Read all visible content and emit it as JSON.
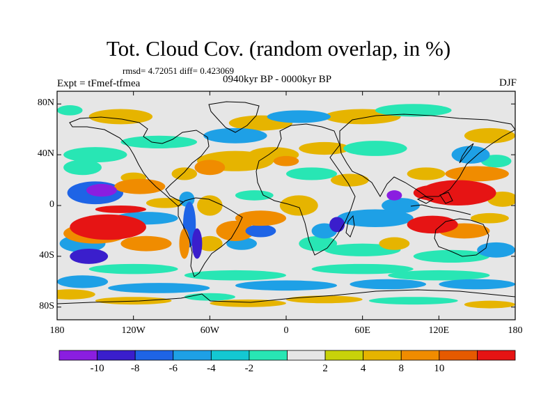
{
  "title": "Tot. Cloud Cov. (random overlap, in %)",
  "stats_line": "rmsd= 4.72051 diff= 0.423069",
  "experiment_label": "Expt = tFmef-tfmea",
  "period_label": "0940kyr BP - 0000kyr BP",
  "season_label": "DJF",
  "lat_ticks": [
    {
      "value": 80,
      "label": "80N"
    },
    {
      "value": 40,
      "label": "40N"
    },
    {
      "value": 0,
      "label": "0"
    },
    {
      "value": -40,
      "label": "40S"
    },
    {
      "value": -80,
      "label": "80S"
    }
  ],
  "lon_ticks": [
    {
      "value": -180,
      "label": "180"
    },
    {
      "value": -120,
      "label": "120W"
    },
    {
      "value": -60,
      "label": "60W"
    },
    {
      "value": 0,
      "label": "0"
    },
    {
      "value": 60,
      "label": "60E"
    },
    {
      "value": 120,
      "label": "120E"
    },
    {
      "value": 180,
      "label": "180"
    }
  ],
  "colorbar": {
    "colors": [
      "#8a1ee0",
      "#3a1ecc",
      "#1e64e6",
      "#1ea0e6",
      "#14c8d2",
      "#28e6b4",
      "#e6e6e6",
      "#c8d20a",
      "#e6b400",
      "#f08c00",
      "#e65a00",
      "#e61414"
    ],
    "boundaries": [
      -12,
      -10,
      -8,
      -6,
      -4,
      -2,
      2,
      4,
      8,
      10
    ],
    "labels": [
      "-10",
      "-8",
      "-6",
      "-4",
      "-2",
      "2",
      "4",
      "8",
      "10"
    ]
  },
  "field_blobs": [
    {
      "lon": -150,
      "lat": 10,
      "rx": 22,
      "ry": 9,
      "v": -7
    },
    {
      "lon": -145,
      "lat": 12,
      "rx": 12,
      "ry": 5,
      "v": -11
    },
    {
      "lon": -115,
      "lat": 15,
      "rx": 20,
      "ry": 6,
      "v": 8
    },
    {
      "lon": -120,
      "lat": 22,
      "rx": 10,
      "ry": 4,
      "v": 4
    },
    {
      "lon": -160,
      "lat": 30,
      "rx": 15,
      "ry": 6,
      "v": -4
    },
    {
      "lon": -140,
      "lat": -17,
      "rx": 30,
      "ry": 10,
      "v": 11
    },
    {
      "lon": -150,
      "lat": -22,
      "rx": 25,
      "ry": 8,
      "v": 9
    },
    {
      "lon": -110,
      "lat": -30,
      "rx": 20,
      "ry": 6,
      "v": 8
    },
    {
      "lon": -160,
      "lat": -30,
      "rx": 18,
      "ry": 7,
      "v": -5
    },
    {
      "lon": -155,
      "lat": -40,
      "rx": 15,
      "ry": 6,
      "v": -9
    },
    {
      "lon": -110,
      "lat": -10,
      "rx": 25,
      "ry": 5,
      "v": -5
    },
    {
      "lon": -130,
      "lat": -3,
      "rx": 20,
      "ry": 3,
      "v": 11
    },
    {
      "lon": -95,
      "lat": 2,
      "rx": 15,
      "ry": 4,
      "v": 4
    },
    {
      "lon": -78,
      "lat": 5,
      "rx": 6,
      "ry": 6,
      "v": -6
    },
    {
      "lon": -76,
      "lat": -15,
      "rx": 5,
      "ry": 18,
      "v": -8
    },
    {
      "lon": -70,
      "lat": -30,
      "rx": 4,
      "ry": 12,
      "v": -10
    },
    {
      "lon": -80,
      "lat": -30,
      "rx": 4,
      "ry": 12,
      "v": 9
    },
    {
      "lon": -60,
      "lat": 0,
      "rx": 10,
      "ry": 8,
      "v": 4
    },
    {
      "lon": -60,
      "lat": -30,
      "rx": 10,
      "ry": 6,
      "v": 4
    },
    {
      "lon": -40,
      "lat": -20,
      "rx": 15,
      "ry": 8,
      "v": 8
    },
    {
      "lon": -20,
      "lat": -10,
      "rx": 20,
      "ry": 6,
      "v": 9
    },
    {
      "lon": -20,
      "lat": -20,
      "rx": 12,
      "ry": 5,
      "v": -8
    },
    {
      "lon": -35,
      "lat": -30,
      "rx": 12,
      "ry": 5,
      "v": -6
    },
    {
      "lon": -25,
      "lat": 8,
      "rx": 15,
      "ry": 4,
      "v": -4
    },
    {
      "lon": -40,
      "lat": 35,
      "rx": 30,
      "ry": 8,
      "v": 5
    },
    {
      "lon": -60,
      "lat": 30,
      "rx": 12,
      "ry": 6,
      "v": 8
    },
    {
      "lon": -80,
      "lat": 25,
      "rx": 10,
      "ry": 5,
      "v": 4
    },
    {
      "lon": -150,
      "lat": 40,
      "rx": 25,
      "ry": 6,
      "v": -4
    },
    {
      "lon": -100,
      "lat": 50,
      "rx": 30,
      "ry": 5,
      "v": -4
    },
    {
      "lon": -40,
      "lat": 55,
      "rx": 25,
      "ry": 6,
      "v": -5
    },
    {
      "lon": -20,
      "lat": 65,
      "rx": 25,
      "ry": 6,
      "v": 4
    },
    {
      "lon": 10,
      "lat": 70,
      "rx": 25,
      "ry": 5,
      "v": -5
    },
    {
      "lon": 60,
      "lat": 70,
      "rx": 30,
      "ry": 6,
      "v": 4
    },
    {
      "lon": 100,
      "lat": 75,
      "rx": 30,
      "ry": 5,
      "v": -4
    },
    {
      "lon": -130,
      "lat": 70,
      "rx": 25,
      "ry": 6,
      "v": 4
    },
    {
      "lon": -170,
      "lat": 75,
      "rx": 10,
      "ry": 4,
      "v": -4
    },
    {
      "lon": -10,
      "lat": 40,
      "rx": 20,
      "ry": 6,
      "v": 4
    },
    {
      "lon": 0,
      "lat": 35,
      "rx": 10,
      "ry": 4,
      "v": 8
    },
    {
      "lon": 30,
      "lat": 45,
      "rx": 20,
      "ry": 5,
      "v": 4
    },
    {
      "lon": 70,
      "lat": 45,
      "rx": 25,
      "ry": 6,
      "v": -4
    },
    {
      "lon": 20,
      "lat": 25,
      "rx": 20,
      "ry": 5,
      "v": -4
    },
    {
      "lon": 50,
      "lat": 20,
      "rx": 15,
      "ry": 5,
      "v": 4
    },
    {
      "lon": 10,
      "lat": 0,
      "rx": 15,
      "ry": 8,
      "v": 4
    },
    {
      "lon": 40,
      "lat": -15,
      "rx": 6,
      "ry": 6,
      "v": -10
    },
    {
      "lon": 30,
      "lat": -20,
      "rx": 10,
      "ry": 6,
      "v": -5
    },
    {
      "lon": 25,
      "lat": -30,
      "rx": 15,
      "ry": 6,
      "v": -4
    },
    {
      "lon": 70,
      "lat": -10,
      "rx": 30,
      "ry": 7,
      "v": -5
    },
    {
      "lon": 90,
      "lat": 0,
      "rx": 15,
      "ry": 6,
      "v": -6
    },
    {
      "lon": 85,
      "lat": 8,
      "rx": 6,
      "ry": 4,
      "v": -11
    },
    {
      "lon": 60,
      "lat": -35,
      "rx": 30,
      "ry": 5,
      "v": -4
    },
    {
      "lon": 85,
      "lat": -30,
      "rx": 12,
      "ry": 5,
      "v": 4
    },
    {
      "lon": 135,
      "lat": 10,
      "rx": 30,
      "ry": 10,
      "v": 10
    },
    {
      "lon": 115,
      "lat": 10,
      "rx": 15,
      "ry": 6,
      "v": 12
    },
    {
      "lon": 150,
      "lat": 25,
      "rx": 25,
      "ry": 6,
      "v": 8
    },
    {
      "lon": 170,
      "lat": 5,
      "rx": 12,
      "ry": 6,
      "v": 5
    },
    {
      "lon": 115,
      "lat": -15,
      "rx": 20,
      "ry": 7,
      "v": 11
    },
    {
      "lon": 140,
      "lat": -20,
      "rx": 20,
      "ry": 6,
      "v": 9
    },
    {
      "lon": 160,
      "lat": -10,
      "rx": 15,
      "ry": 4,
      "v": 5
    },
    {
      "lon": 145,
      "lat": 40,
      "rx": 15,
      "ry": 7,
      "v": -6
    },
    {
      "lon": 165,
      "lat": 35,
      "rx": 12,
      "ry": 5,
      "v": -4
    },
    {
      "lon": 110,
      "lat": 25,
      "rx": 15,
      "ry": 5,
      "v": 4
    },
    {
      "lon": 160,
      "lat": 55,
      "rx": 20,
      "ry": 6,
      "v": 4
    },
    {
      "lon": 130,
      "lat": -40,
      "rx": 30,
      "ry": 5,
      "v": -4
    },
    {
      "lon": 165,
      "lat": -35,
      "rx": 15,
      "ry": 6,
      "v": -6
    },
    {
      "lon": -120,
      "lat": -50,
      "rx": 35,
      "ry": 4,
      "v": -4
    },
    {
      "lon": -40,
      "lat": -55,
      "rx": 40,
      "ry": 4,
      "v": -4
    },
    {
      "lon": 60,
      "lat": -50,
      "rx": 40,
      "ry": 4,
      "v": -4
    },
    {
      "lon": 120,
      "lat": -55,
      "rx": 40,
      "ry": 4,
      "v": -4
    },
    {
      "lon": -160,
      "lat": -60,
      "rx": 20,
      "ry": 5,
      "v": -5
    },
    {
      "lon": -100,
      "lat": -65,
      "rx": 40,
      "ry": 4,
      "v": -5
    },
    {
      "lon": 0,
      "lat": -63,
      "rx": 40,
      "ry": 4,
      "v": -5
    },
    {
      "lon": 80,
      "lat": -62,
      "rx": 30,
      "ry": 4,
      "v": -5
    },
    {
      "lon": 150,
      "lat": -62,
      "rx": 30,
      "ry": 4,
      "v": -5
    },
    {
      "lon": -170,
      "lat": -70,
      "rx": 20,
      "ry": 4,
      "v": 4
    },
    {
      "lon": -120,
      "lat": -75,
      "rx": 30,
      "ry": 3,
      "v": 4
    },
    {
      "lon": -60,
      "lat": -72,
      "rx": 20,
      "ry": 3,
      "v": -4
    },
    {
      "lon": -30,
      "lat": -77,
      "rx": 30,
      "ry": 3,
      "v": 4
    },
    {
      "lon": 30,
      "lat": -74,
      "rx": 30,
      "ry": 3,
      "v": 4
    },
    {
      "lon": 100,
      "lat": -75,
      "rx": 35,
      "ry": 3,
      "v": -4
    },
    {
      "lon": 160,
      "lat": -78,
      "rx": 20,
      "ry": 3,
      "v": 4
    }
  ]
}
